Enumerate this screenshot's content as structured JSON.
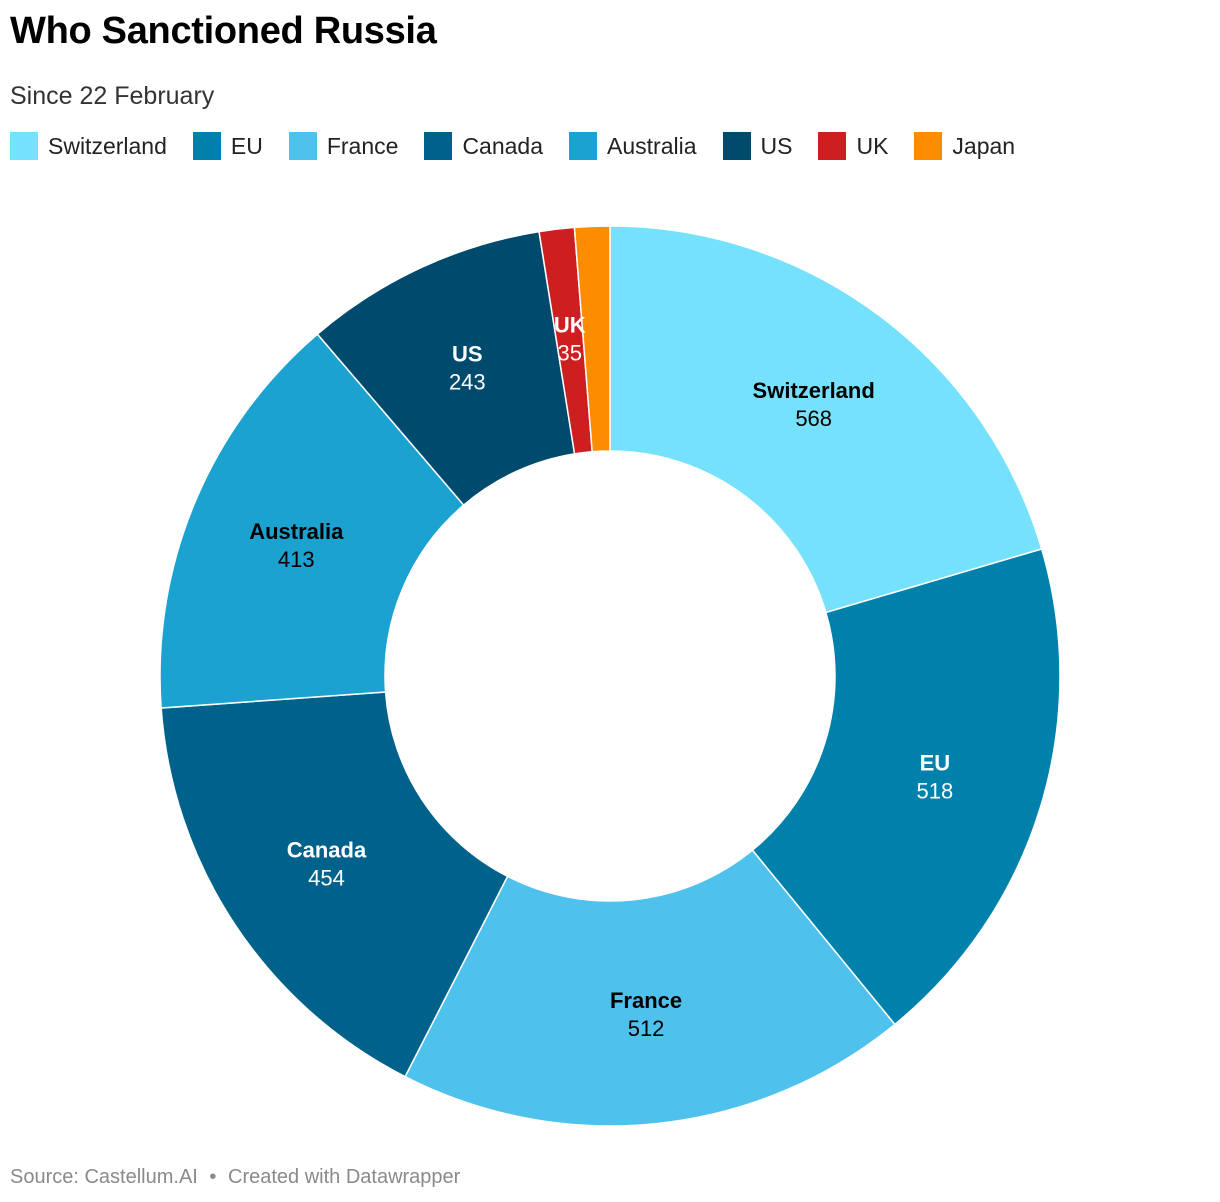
{
  "title": "Who Sanctioned Russia",
  "subtitle": "Since 22 February",
  "footer": {
    "source": "Source: Castellum.AI",
    "separator": "•",
    "credit": "Created with Datawrapper"
  },
  "chart_data": {
    "type": "pie",
    "variant": "donut",
    "start_angle_deg": 0,
    "direction": "clockwise",
    "legend_position": "top",
    "categories": [
      "Switzerland",
      "EU",
      "France",
      "Canada",
      "Australia",
      "US",
      "UK",
      "Japan"
    ],
    "values": [
      568,
      518,
      512,
      454,
      413,
      243,
      35,
      35
    ],
    "colors": [
      "#76e1fd",
      "#0081ab",
      "#4fc1ed",
      "#00618a",
      "#1ba2d0",
      "#004a6e",
      "#cd1f1f",
      "#fc8c00"
    ],
    "label_text_colors": [
      "#000000",
      "#ffffff",
      "#000000",
      "#ffffff",
      "#000000",
      "#ffffff",
      "#ffffff",
      "#ffffff"
    ],
    "labels_shown": [
      true,
      true,
      true,
      true,
      true,
      true,
      true,
      false
    ]
  }
}
